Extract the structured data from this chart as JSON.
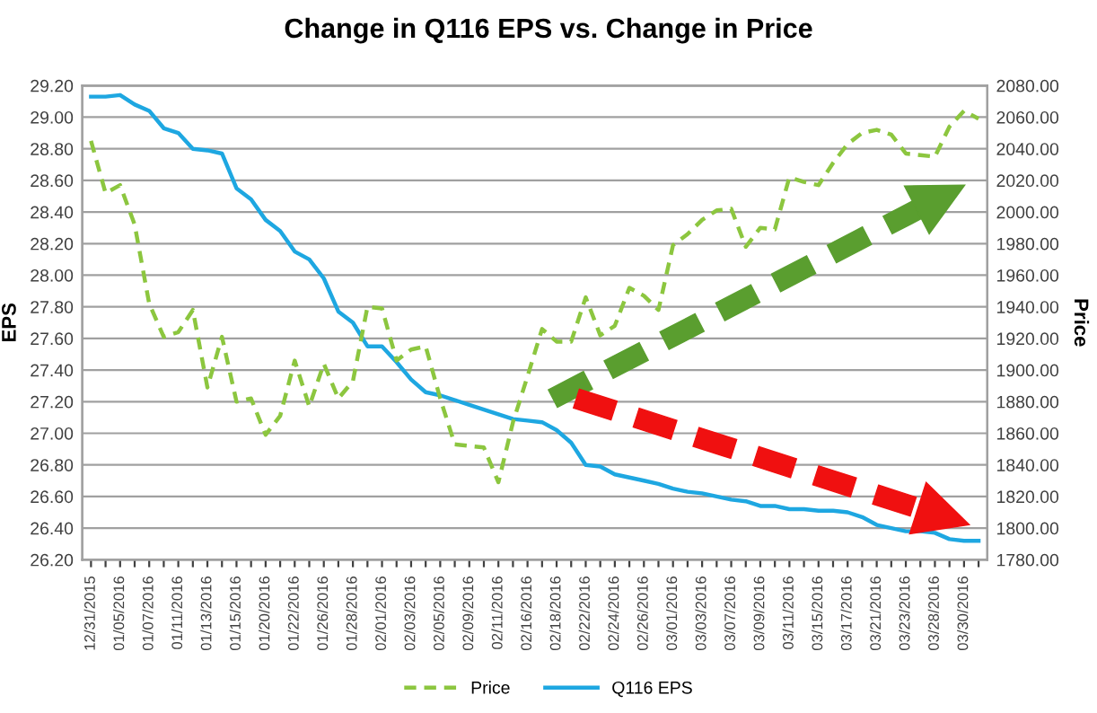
{
  "chart_data": {
    "type": "line",
    "title": "Change in Q116 EPS vs. Change in Price",
    "categories": [
      "12/31/2015",
      null,
      "01/05/2016",
      null,
      "01/07/2016",
      null,
      "01/11/2016",
      null,
      "01/13/2016",
      null,
      "01/15/2016",
      null,
      "01/20/2016",
      null,
      "01/22/2016",
      null,
      "01/26/2016",
      null,
      "01/28/2016",
      null,
      "02/01/2016",
      null,
      "02/03/2016",
      null,
      "02/05/2016",
      null,
      "02/09/2016",
      null,
      "02/11/2016",
      null,
      "02/16/2016",
      null,
      "02/18/2016",
      null,
      "02/22/2016",
      null,
      "02/24/2016",
      null,
      "02/26/2016",
      null,
      "03/01/2016",
      null,
      "03/03/2016",
      null,
      "03/07/2016",
      null,
      "03/09/2016",
      null,
      "03/11/2016",
      null,
      "03/15/2016",
      null,
      "03/17/2016",
      null,
      "03/21/2016",
      null,
      "03/23/2016",
      null,
      "03/28/2016",
      null,
      "03/30/2016",
      null
    ],
    "series": [
      {
        "name": "Price",
        "color": "#8cc63f",
        "axis": "y2",
        "line_style": "dashed",
        "values": [
          2045,
          2012,
          2017,
          1992,
          1942,
          1921,
          1924,
          1938,
          1889,
          1921,
          1880,
          1882,
          1859,
          1871,
          1906,
          1877,
          1904,
          1882,
          1893,
          1940,
          1939,
          1906,
          1913,
          1915,
          1882,
          1853,
          1852,
          1851,
          1829,
          1867,
          1896,
          1926,
          1918,
          1918,
          1946,
          1922,
          1928,
          1952,
          1947,
          1938,
          1979,
          1986,
          1995,
          2001,
          2002,
          1978,
          1990,
          1989,
          2022,
          2019,
          2017,
          2031,
          2043,
          2050,
          2052,
          2049,
          2037,
          2036,
          2035,
          2054,
          2064,
          2059
        ]
      },
      {
        "name": "Q116 EPS",
        "color": "#1ea7e1",
        "axis": "y",
        "line_style": "solid",
        "values": [
          29.13,
          29.13,
          29.14,
          29.08,
          29.04,
          28.93,
          28.9,
          28.8,
          28.79,
          28.77,
          28.55,
          28.48,
          28.35,
          28.28,
          28.15,
          28.1,
          27.98,
          27.77,
          27.7,
          27.55,
          27.55,
          27.45,
          27.34,
          27.26,
          27.24,
          27.21,
          27.18,
          27.15,
          27.12,
          27.09,
          27.08,
          27.07,
          27.02,
          26.94,
          26.8,
          26.79,
          26.74,
          26.72,
          26.7,
          26.68,
          26.65,
          26.63,
          26.62,
          26.6,
          26.58,
          26.57,
          26.54,
          26.54,
          26.52,
          26.52,
          26.51,
          26.51,
          26.5,
          26.47,
          26.42,
          26.4,
          26.38,
          26.38,
          26.37,
          26.33,
          26.32,
          26.32
        ]
      }
    ],
    "ylabel": "EPS",
    "y2label": "Price",
    "ylim": [
      26.2,
      29.2
    ],
    "yticks": [
      {
        "value": 26.2,
        "label": "26.20"
      },
      {
        "value": 26.4,
        "label": "26.40"
      },
      {
        "value": 26.6,
        "label": "26.60"
      },
      {
        "value": 26.8,
        "label": "26.80"
      },
      {
        "value": 27.0,
        "label": "27.00"
      },
      {
        "value": 27.2,
        "label": "27.20"
      },
      {
        "value": 27.4,
        "label": "27.40"
      },
      {
        "value": 27.6,
        "label": "27.60"
      },
      {
        "value": 27.8,
        "label": "27.80"
      },
      {
        "value": 28.0,
        "label": "28.00"
      },
      {
        "value": 28.2,
        "label": "28.20"
      },
      {
        "value": 28.4,
        "label": "28.40"
      },
      {
        "value": 28.6,
        "label": "28.60"
      },
      {
        "value": 28.8,
        "label": "28.80"
      },
      {
        "value": 29.0,
        "label": "29.00"
      },
      {
        "value": 29.2,
        "label": "29.20"
      }
    ],
    "y2lim": [
      1780,
      2080
    ],
    "y2ticks": [
      {
        "value": 1780,
        "label": "1780.00"
      },
      {
        "value": 1800,
        "label": "1800.00"
      },
      {
        "value": 1820,
        "label": "1820.00"
      },
      {
        "value": 1840,
        "label": "1840.00"
      },
      {
        "value": 1860,
        "label": "1860.00"
      },
      {
        "value": 1880,
        "label": "1880.00"
      },
      {
        "value": 1900,
        "label": "1900.00"
      },
      {
        "value": 1920,
        "label": "1920.00"
      },
      {
        "value": 1940,
        "label": "1940.00"
      },
      {
        "value": 1960,
        "label": "1960.00"
      },
      {
        "value": 1980,
        "label": "1980.00"
      },
      {
        "value": 2000,
        "label": "2000.00"
      },
      {
        "value": 2020,
        "label": "2020.00"
      },
      {
        "value": 2040,
        "label": "2040.00"
      },
      {
        "value": 2060,
        "label": "2060.00"
      },
      {
        "value": 2080,
        "label": "2080.00"
      }
    ],
    "grid": "y",
    "legend": "bottom",
    "marker": "none"
  }
}
